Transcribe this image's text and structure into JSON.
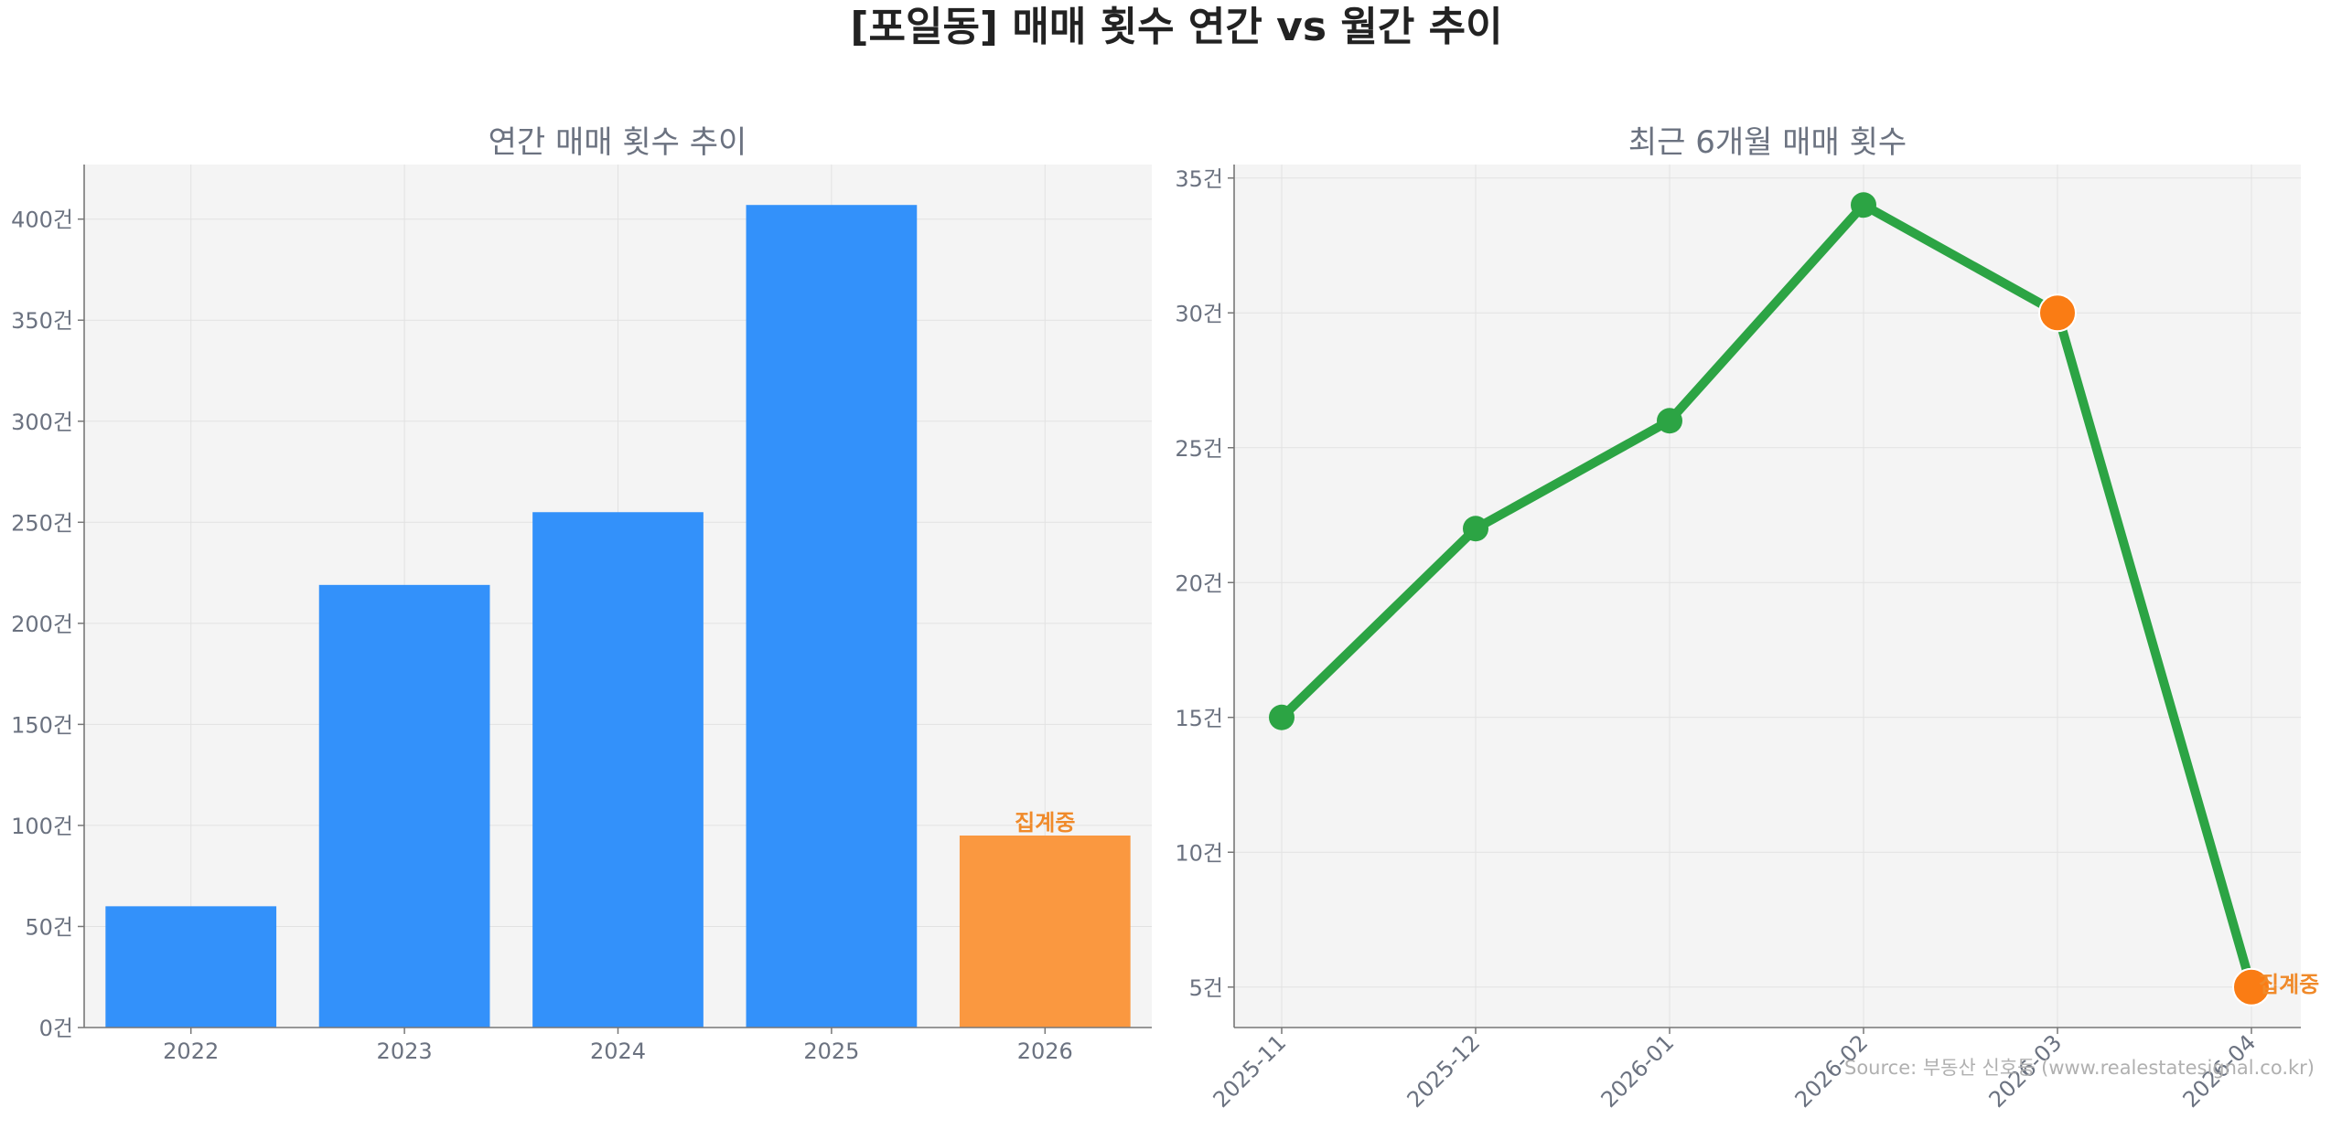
{
  "figure": {
    "title": "[포일동] 매매 횟수 연간 vs 월간 추이",
    "source": "Source: 부동산 신호등 (www.realestatesignal.co.kr)"
  },
  "chart_data": [
    {
      "type": "bar",
      "title": "연간 매매 횟수 추이",
      "categories": [
        "2022",
        "2023",
        "2024",
        "2025",
        "2026"
      ],
      "values": [
        60,
        219,
        255,
        407,
        95
      ],
      "highlight_index": 4,
      "highlight_label": "집계중",
      "colors": {
        "bar": "#3391fa",
        "highlight": "#fa9840",
        "highlight_text": "#f08a2a"
      },
      "ylim": [
        0,
        427
      ],
      "yticks": [
        0,
        50,
        100,
        150,
        200,
        250,
        300,
        350,
        400
      ],
      "y_unit": "건",
      "grid": true
    },
    {
      "type": "line",
      "title": "최근 6개월 매매 횟수",
      "x": [
        "2025-11",
        "2025-12",
        "2026-01",
        "2026-02",
        "2026-03",
        "2026-04"
      ],
      "values": [
        15,
        22,
        26,
        34,
        30,
        5
      ],
      "highlight_indices": [
        4,
        5
      ],
      "highlight_label": "집계중",
      "colors": {
        "line": "#2ca444",
        "highlight": "#fa7c14",
        "highlight_text": "#f08a2a"
      },
      "ylim": [
        3.5,
        35.5
      ],
      "yticks": [
        5,
        10,
        15,
        20,
        25,
        30,
        35
      ],
      "y_unit": "건",
      "grid": true
    }
  ]
}
